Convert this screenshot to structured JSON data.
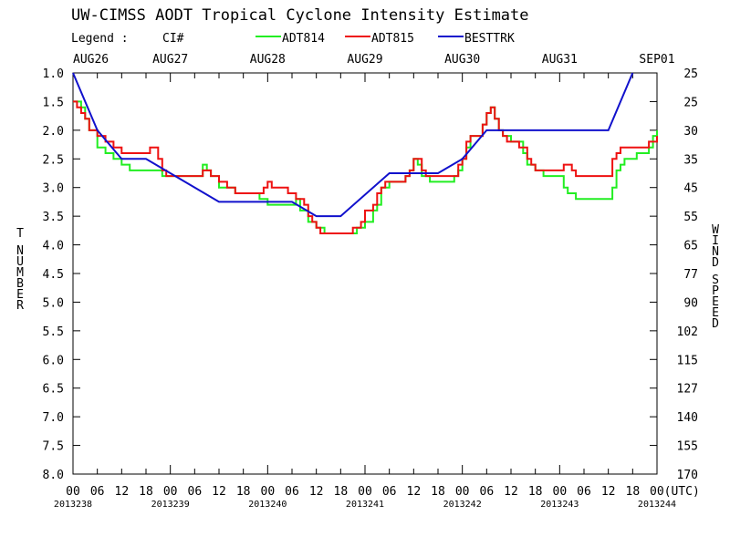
{
  "chart_data": {
    "type": "line",
    "title": "UW-CIMSS AODT Tropical Cyclone Intensity Estimate",
    "legend": {
      "label": "Legend :",
      "ci_label": "CI#",
      "entries": [
        {
          "name": "ADT814",
          "color": "#22ee22"
        },
        {
          "name": "ADT815",
          "color": "#ee1111"
        },
        {
          "name": "BESTTRK",
          "color": "#1111cc"
        }
      ]
    },
    "x_axis": {
      "units": "hours",
      "range": [
        0,
        144
      ],
      "top_date_labels": [
        {
          "hour": 0,
          "label": "AUG26"
        },
        {
          "hour": 24,
          "label": "AUG27"
        },
        {
          "hour": 48,
          "label": "AUG28"
        },
        {
          "hour": 72,
          "label": "AUG29"
        },
        {
          "hour": 96,
          "label": "AUG30"
        },
        {
          "hour": 120,
          "label": "AUG31"
        },
        {
          "hour": 144,
          "label": "SEP01"
        }
      ],
      "bottom_tick_labels": [
        "00",
        "06",
        "12",
        "18",
        "00",
        "06",
        "12",
        "18",
        "00",
        "06",
        "12",
        "18",
        "00",
        "06",
        "12",
        "18",
        "00",
        "06",
        "12",
        "18",
        "00",
        "06",
        "12",
        "18",
        "00(UTC)"
      ],
      "julian_labels": [
        {
          "hour": 0,
          "label": "2013238"
        },
        {
          "hour": 24,
          "label": "2013239"
        },
        {
          "hour": 48,
          "label": "2013240"
        },
        {
          "hour": 72,
          "label": "2013241"
        },
        {
          "hour": 96,
          "label": "2013242"
        },
        {
          "hour": 120,
          "label": "2013243"
        },
        {
          "hour": 144,
          "label": "2013244"
        }
      ]
    },
    "y_left": {
      "label": "T NUMBER",
      "range": [
        1.0,
        8.0
      ],
      "ticks": [
        "1.0",
        "1.5",
        "2.0",
        "2.5",
        "3.0",
        "3.5",
        "4.0",
        "4.5",
        "5.0",
        "5.5",
        "6.0",
        "6.5",
        "7.0",
        "7.5",
        "8.0"
      ]
    },
    "y_right": {
      "label": "WIND SPEED",
      "ticks": [
        "25",
        "25",
        "30",
        "35",
        "45",
        "55",
        "65",
        "77",
        "90",
        "102",
        "115",
        "127",
        "140",
        "155",
        "170"
      ]
    },
    "series": [
      {
        "name": "ADT814",
        "color": "#22ee22",
        "points": [
          [
            0,
            1.5
          ],
          [
            2,
            1.6
          ],
          [
            3,
            1.8
          ],
          [
            4,
            2.0
          ],
          [
            6,
            2.3
          ],
          [
            8,
            2.4
          ],
          [
            10,
            2.5
          ],
          [
            12,
            2.6
          ],
          [
            14,
            2.7
          ],
          [
            16,
            2.7
          ],
          [
            18,
            2.7
          ],
          [
            20,
            2.7
          ],
          [
            22,
            2.8
          ],
          [
            24,
            2.8
          ],
          [
            26,
            2.8
          ],
          [
            28,
            2.8
          ],
          [
            30,
            2.8
          ],
          [
            32,
            2.6
          ],
          [
            33,
            2.7
          ],
          [
            34,
            2.8
          ],
          [
            36,
            3.0
          ],
          [
            38,
            3.0
          ],
          [
            40,
            3.1
          ],
          [
            42,
            3.1
          ],
          [
            44,
            3.1
          ],
          [
            46,
            3.2
          ],
          [
            48,
            3.3
          ],
          [
            50,
            3.3
          ],
          [
            52,
            3.3
          ],
          [
            54,
            3.3
          ],
          [
            55,
            3.2
          ],
          [
            56,
            3.4
          ],
          [
            58,
            3.6
          ],
          [
            60,
            3.7
          ],
          [
            62,
            3.8
          ],
          [
            64,
            3.8
          ],
          [
            66,
            3.8
          ],
          [
            68,
            3.8
          ],
          [
            70,
            3.7
          ],
          [
            72,
            3.6
          ],
          [
            74,
            3.4
          ],
          [
            75,
            3.3
          ],
          [
            76,
            3.0
          ],
          [
            78,
            2.9
          ],
          [
            80,
            2.9
          ],
          [
            82,
            2.8
          ],
          [
            83,
            2.7
          ],
          [
            84,
            2.5
          ],
          [
            85,
            2.6
          ],
          [
            86,
            2.8
          ],
          [
            88,
            2.9
          ],
          [
            90,
            2.9
          ],
          [
            92,
            2.9
          ],
          [
            94,
            2.8
          ],
          [
            95,
            2.7
          ],
          [
            96,
            2.5
          ],
          [
            97,
            2.3
          ],
          [
            98,
            2.1
          ],
          [
            100,
            2.1
          ],
          [
            101,
            1.9
          ],
          [
            102,
            1.7
          ],
          [
            103,
            1.6
          ],
          [
            104,
            1.8
          ],
          [
            105,
            2.0
          ],
          [
            106,
            2.1
          ],
          [
            108,
            2.2
          ],
          [
            110,
            2.2
          ],
          [
            111,
            2.4
          ],
          [
            112,
            2.6
          ],
          [
            114,
            2.7
          ],
          [
            116,
            2.8
          ],
          [
            118,
            2.8
          ],
          [
            120,
            2.8
          ],
          [
            121,
            3.0
          ],
          [
            122,
            3.1
          ],
          [
            124,
            3.2
          ],
          [
            126,
            3.2
          ],
          [
            128,
            3.2
          ],
          [
            130,
            3.2
          ],
          [
            132,
            3.2
          ],
          [
            133,
            3.0
          ],
          [
            134,
            2.7
          ],
          [
            135,
            2.6
          ],
          [
            136,
            2.5
          ],
          [
            138,
            2.5
          ],
          [
            139,
            2.4
          ],
          [
            140,
            2.4
          ],
          [
            142,
            2.3
          ],
          [
            143,
            2.1
          ],
          [
            144,
            2.0
          ]
        ]
      },
      {
        "name": "ADT815",
        "color": "#ee1111",
        "points": [
          [
            0,
            1.5
          ],
          [
            1,
            1.6
          ],
          [
            2,
            1.7
          ],
          [
            3,
            1.8
          ],
          [
            4,
            2.0
          ],
          [
            6,
            2.1
          ],
          [
            8,
            2.2
          ],
          [
            10,
            2.3
          ],
          [
            12,
            2.4
          ],
          [
            14,
            2.4
          ],
          [
            16,
            2.4
          ],
          [
            18,
            2.4
          ],
          [
            19,
            2.3
          ],
          [
            20,
            2.3
          ],
          [
            21,
            2.5
          ],
          [
            22,
            2.7
          ],
          [
            23,
            2.8
          ],
          [
            24,
            2.8
          ],
          [
            26,
            2.8
          ],
          [
            28,
            2.8
          ],
          [
            30,
            2.8
          ],
          [
            32,
            2.7
          ],
          [
            34,
            2.8
          ],
          [
            36,
            2.9
          ],
          [
            38,
            3.0
          ],
          [
            40,
            3.1
          ],
          [
            42,
            3.1
          ],
          [
            44,
            3.1
          ],
          [
            46,
            3.1
          ],
          [
            47,
            3.0
          ],
          [
            48,
            2.9
          ],
          [
            49,
            3.0
          ],
          [
            51,
            3.0
          ],
          [
            53,
            3.1
          ],
          [
            55,
            3.2
          ],
          [
            57,
            3.3
          ],
          [
            58,
            3.5
          ],
          [
            59,
            3.6
          ],
          [
            60,
            3.7
          ],
          [
            61,
            3.8
          ],
          [
            62,
            3.8
          ],
          [
            64,
            3.8
          ],
          [
            66,
            3.8
          ],
          [
            68,
            3.8
          ],
          [
            69,
            3.7
          ],
          [
            70,
            3.7
          ],
          [
            71,
            3.6
          ],
          [
            72,
            3.4
          ],
          [
            74,
            3.3
          ],
          [
            75,
            3.1
          ],
          [
            76,
            3.0
          ],
          [
            77,
            2.9
          ],
          [
            78,
            2.9
          ],
          [
            80,
            2.9
          ],
          [
            82,
            2.8
          ],
          [
            83,
            2.7
          ],
          [
            84,
            2.5
          ],
          [
            85,
            2.5
          ],
          [
            86,
            2.7
          ],
          [
            87,
            2.8
          ],
          [
            88,
            2.8
          ],
          [
            90,
            2.8
          ],
          [
            92,
            2.8
          ],
          [
            94,
            2.8
          ],
          [
            95,
            2.6
          ],
          [
            96,
            2.5
          ],
          [
            97,
            2.2
          ],
          [
            98,
            2.1
          ],
          [
            100,
            2.1
          ],
          [
            101,
            1.9
          ],
          [
            102,
            1.7
          ],
          [
            103,
            1.6
          ],
          [
            104,
            1.8
          ],
          [
            105,
            2.0
          ],
          [
            106,
            2.1
          ],
          [
            107,
            2.2
          ],
          [
            109,
            2.2
          ],
          [
            110,
            2.3
          ],
          [
            112,
            2.5
          ],
          [
            113,
            2.6
          ],
          [
            114,
            2.7
          ],
          [
            116,
            2.7
          ],
          [
            118,
            2.7
          ],
          [
            120,
            2.7
          ],
          [
            121,
            2.6
          ],
          [
            122,
            2.6
          ],
          [
            123,
            2.7
          ],
          [
            124,
            2.8
          ],
          [
            126,
            2.8
          ],
          [
            128,
            2.8
          ],
          [
            130,
            2.8
          ],
          [
            132,
            2.8
          ],
          [
            133,
            2.5
          ],
          [
            134,
            2.4
          ],
          [
            135,
            2.3
          ],
          [
            137,
            2.3
          ],
          [
            139,
            2.3
          ],
          [
            141,
            2.3
          ],
          [
            142,
            2.2
          ],
          [
            143,
            2.2
          ],
          [
            144,
            2.1
          ]
        ]
      },
      {
        "name": "BESTTRK",
        "color": "#1111cc",
        "points": [
          [
            0,
            1.0
          ],
          [
            6,
            2.0
          ],
          [
            12,
            2.5
          ],
          [
            18,
            2.5
          ],
          [
            24,
            2.75
          ],
          [
            36,
            3.25
          ],
          [
            54,
            3.25
          ],
          [
            60,
            3.5
          ],
          [
            66,
            3.5
          ],
          [
            78,
            2.75
          ],
          [
            90,
            2.75
          ],
          [
            96,
            2.5
          ],
          [
            102,
            2.0
          ],
          [
            132,
            2.0
          ],
          [
            138,
            1.0
          ]
        ]
      }
    ]
  }
}
